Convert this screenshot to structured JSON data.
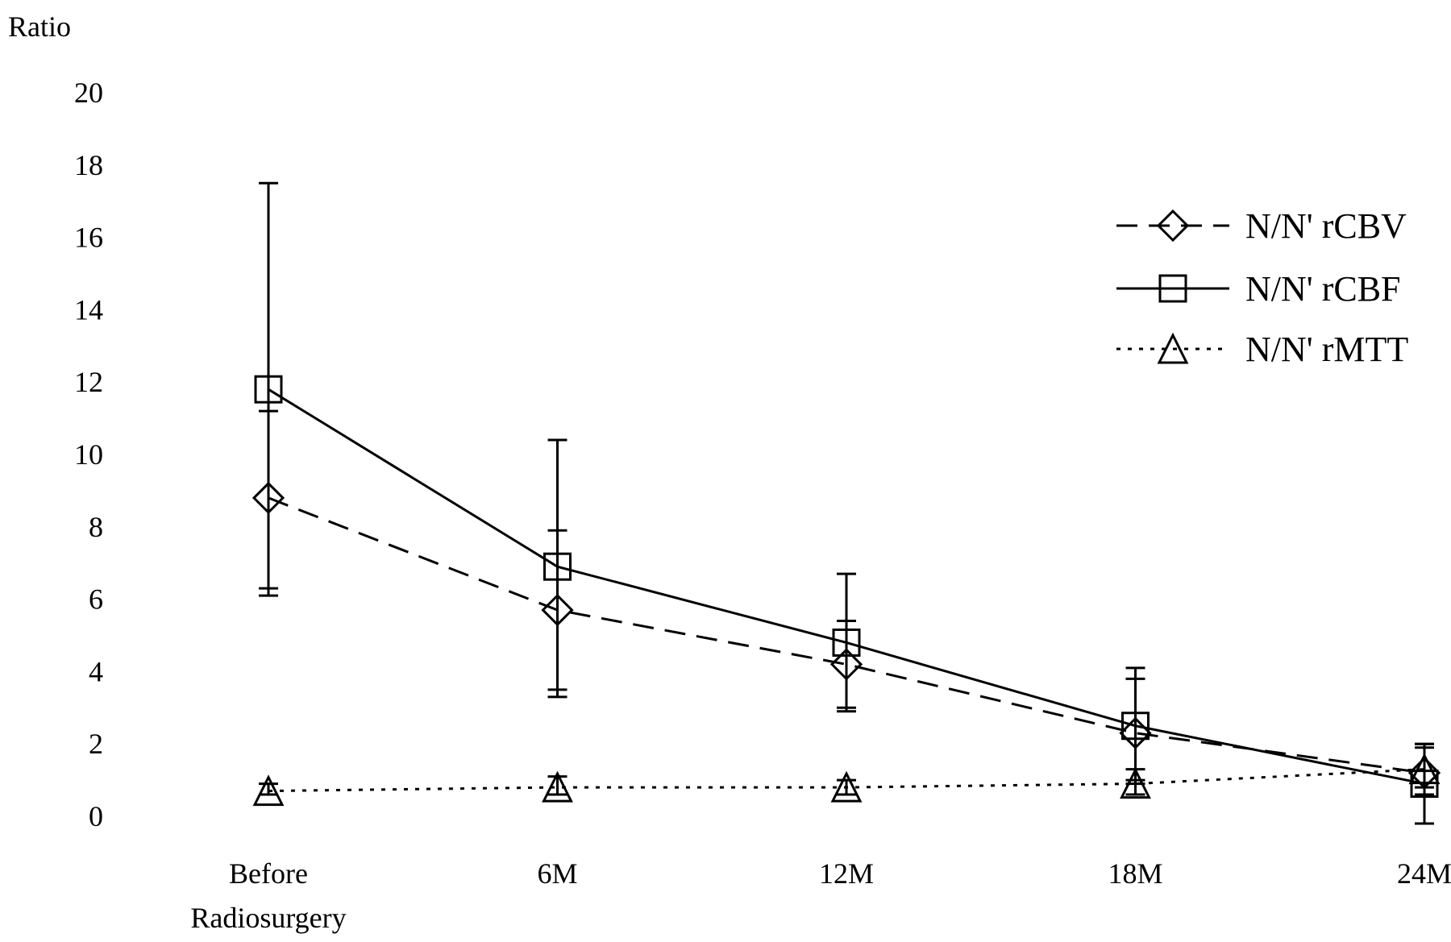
{
  "chart_data": {
    "type": "line",
    "ylabel": "Ratio",
    "xlabel": "",
    "ylim": [
      0,
      20
    ],
    "yticks": [
      0,
      2,
      4,
      6,
      8,
      10,
      12,
      14,
      16,
      18,
      20
    ],
    "grid": false,
    "legend_position": "top-right",
    "categories": [
      [
        "Before",
        "Radiosurgery"
      ],
      [
        "6M"
      ],
      [
        "12M"
      ],
      [
        "18M"
      ],
      [
        "24M"
      ]
    ],
    "series": [
      {
        "name": "N/N' rCBV",
        "marker": "diamond",
        "line_style": "dashed",
        "values": [
          8.8,
          5.7,
          4.2,
          2.3,
          1.2
        ],
        "error_upper": [
          11.2,
          7.9,
          5.4,
          3.8,
          1.9
        ],
        "error_lower": [
          6.3,
          3.5,
          3.0,
          1.0,
          0.6
        ]
      },
      {
        "name": "N/N' rCBF",
        "marker": "square",
        "line_style": "solid",
        "values": [
          11.8,
          6.9,
          4.8,
          2.5,
          0.9
        ],
        "error_upper": [
          17.5,
          10.4,
          6.7,
          4.1,
          2.0
        ],
        "error_lower": [
          6.1,
          3.3,
          2.9,
          0.9,
          -0.2
        ]
      },
      {
        "name": "N/N' rMTT",
        "marker": "triangle",
        "line_style": "dotted",
        "values": [
          0.7,
          0.8,
          0.8,
          0.9,
          1.3
        ],
        "error_upper": [
          0.9,
          1.1,
          1.0,
          1.3,
          2.0
        ],
        "error_lower": [
          0.6,
          0.6,
          0.6,
          0.6,
          0.8
        ]
      }
    ],
    "colors": {
      "line": "#000000",
      "background": "#ffffff"
    }
  }
}
